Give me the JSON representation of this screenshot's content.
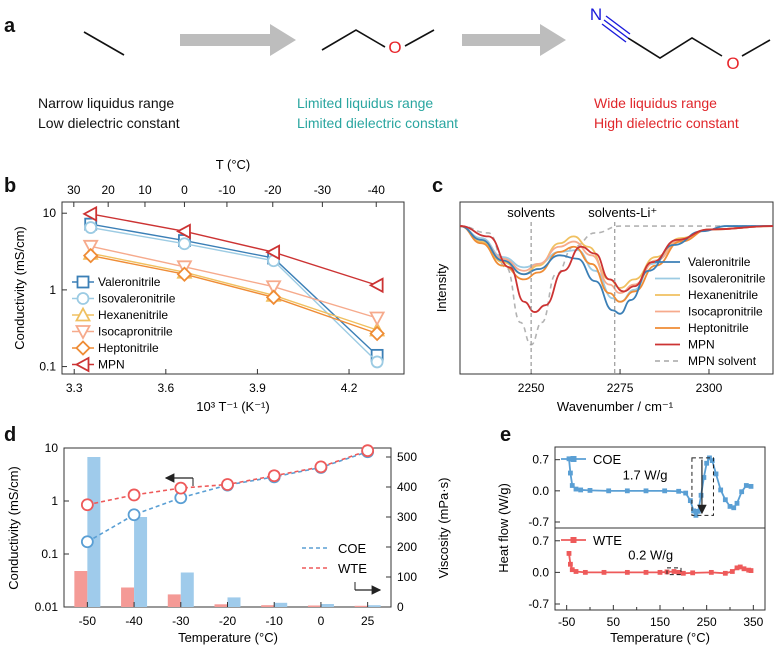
{
  "panel_labels": {
    "a": "a",
    "b": "b",
    "c": "c",
    "d": "d",
    "e": "e"
  },
  "colors": {
    "arrow_gray": "#b5b5b5",
    "oxygen_red": "#e8262b",
    "nitrogen_blue": "#1a1adb",
    "black_desc": "#111111",
    "teal_desc": "#2aa6a0",
    "red_desc": "#e0262b",
    "valeronitrile": "#3b7fb6",
    "isovaleronitrile": "#9ccbe3",
    "hexanenitrile": "#f0c060",
    "isocapronitrile": "#f6aa8c",
    "heptonitrile": "#ef8c35",
    "mpn": "#cc3333",
    "mpn_solvent": "#b3b3b3",
    "coe": "#5a9fd4",
    "wte": "#ee5a5a",
    "coe_bar": "#9fcbeb",
    "wte_bar": "#f49a96"
  },
  "panel_a": {
    "molecules": [
      {
        "name": "ethane-skeleton",
        "atoms": []
      },
      {
        "name": "ether-skeleton",
        "atoms": [
          "O"
        ]
      },
      {
        "name": "mpn-skeleton",
        "atoms": [
          "N",
          "O"
        ]
      }
    ],
    "descriptions": [
      {
        "line1": "Narrow liquidus range",
        "line2": "Low dielectric constant",
        "color": "#111111"
      },
      {
        "line1": "Limited liquidus range",
        "line2": "Limited dielectric constant",
        "color": "#2aa6a0"
      },
      {
        "line1": "Wide liquidus range",
        "line2": "High dielectric constant",
        "color": "#e0262b"
      }
    ]
  },
  "chart_data": [
    {
      "panel": "b",
      "type": "line",
      "xlabel": "10³ T⁻¹ (K⁻¹)",
      "ylabel": "Conductivity (mS/cm)",
      "top_xlabel": "T (°C)",
      "yscale": "log",
      "xlim": [
        3.26,
        4.38
      ],
      "ylim": [
        0.08,
        14
      ],
      "xticks": [
        "3.3",
        "3.6",
        "3.9",
        "4.2"
      ],
      "xtick_values": [
        3.3,
        3.6,
        3.9,
        4.2
      ],
      "yticks": [
        "0.1",
        "1",
        "10"
      ],
      "ytick_values": [
        0.1,
        1,
        10
      ],
      "top_ticks": [
        "30",
        "20",
        "10",
        "0",
        "-10",
        "-20",
        "-30",
        "-40"
      ],
      "top_tick_values": [
        30,
        20,
        10,
        0,
        -10,
        -20,
        -30,
        -40
      ],
      "x": [
        3.354,
        3.661,
        3.953,
        4.292
      ],
      "series": [
        {
          "name": "Valeronitrile",
          "values": [
            7.2,
            4.4,
            2.6,
            0.14
          ],
          "marker": "square",
          "color": "#3b7fb6"
        },
        {
          "name": "Isovaleronitrile",
          "values": [
            6.5,
            4.0,
            2.4,
            0.115
          ],
          "marker": "circle",
          "color": "#9ccbe3"
        },
        {
          "name": "Hexanenitrile",
          "values": [
            3.0,
            1.7,
            0.85,
            0.3
          ],
          "marker": "triangle-up",
          "color": "#f0c060"
        },
        {
          "name": "Isocapronitrile",
          "values": [
            3.7,
            2.0,
            1.1,
            0.43
          ],
          "marker": "triangle-down",
          "color": "#f6aa8c"
        },
        {
          "name": "Heptonitrile",
          "values": [
            2.8,
            1.6,
            0.8,
            0.27
          ],
          "marker": "diamond",
          "color": "#ef8c35"
        },
        {
          "name": "MPN",
          "values": [
            9.8,
            5.8,
            3.1,
            1.15
          ],
          "marker": "triangle-left",
          "color": "#cc3333"
        }
      ],
      "legend": "left"
    },
    {
      "panel": "c",
      "type": "line",
      "xlabel": "Wavenumber / cm⁻¹",
      "ylabel": "Intensity",
      "xlim": [
        2230,
        2318
      ],
      "ylim": [
        0,
        1
      ],
      "xticks": [
        "2250",
        "2275",
        "2300"
      ],
      "xtick_values": [
        2250,
        2275,
        2300
      ],
      "annotations": [
        "solvents",
        "solvents-Li⁺"
      ],
      "annotation_x": [
        2250,
        2273.5
      ],
      "series": [
        {
          "name": "Valeronitrile",
          "color": "#3b7fb6",
          "dash": false,
          "points": [
            [
              2230,
              0.86
            ],
            [
              2236,
              0.78
            ],
            [
              2242,
              0.66
            ],
            [
              2248,
              0.58
            ],
            [
              2252,
              0.61
            ],
            [
              2258,
              0.69
            ],
            [
              2263,
              0.67
            ],
            [
              2268,
              0.54
            ],
            [
              2273,
              0.37
            ],
            [
              2275,
              0.35
            ],
            [
              2278,
              0.43
            ],
            [
              2283,
              0.6
            ],
            [
              2290,
              0.75
            ],
            [
              2298,
              0.83
            ],
            [
              2305,
              0.86
            ],
            [
              2318,
              0.86
            ]
          ]
        },
        {
          "name": "Isovaleronitrile",
          "color": "#9ccbe3",
          "dash": false,
          "points": [
            [
              2230,
              0.86
            ],
            [
              2236,
              0.79
            ],
            [
              2242,
              0.68
            ],
            [
              2248,
              0.62
            ],
            [
              2252,
              0.64
            ],
            [
              2258,
              0.71
            ],
            [
              2263,
              0.72
            ],
            [
              2268,
              0.6
            ],
            [
              2273,
              0.44
            ],
            [
              2275,
              0.42
            ],
            [
              2279,
              0.49
            ],
            [
              2284,
              0.64
            ],
            [
              2291,
              0.77
            ],
            [
              2300,
              0.84
            ],
            [
              2318,
              0.86
            ]
          ]
        },
        {
          "name": "Hexanenitrile",
          "color": "#f0c060",
          "dash": false,
          "points": [
            [
              2230,
              0.86
            ],
            [
              2236,
              0.77
            ],
            [
              2242,
              0.65
            ],
            [
              2248,
              0.58
            ],
            [
              2252,
              0.63
            ],
            [
              2258,
              0.76
            ],
            [
              2262,
              0.8
            ],
            [
              2266,
              0.74
            ],
            [
              2272,
              0.55
            ],
            [
              2275,
              0.5
            ],
            [
              2279,
              0.55
            ],
            [
              2285,
              0.68
            ],
            [
              2292,
              0.79
            ],
            [
              2300,
              0.84
            ],
            [
              2318,
              0.86
            ]
          ]
        },
        {
          "name": "Isocapronitrile",
          "color": "#f6aa8c",
          "dash": false,
          "points": [
            [
              2230,
              0.86
            ],
            [
              2236,
              0.78
            ],
            [
              2242,
              0.67
            ],
            [
              2248,
              0.6
            ],
            [
              2252,
              0.64
            ],
            [
              2258,
              0.74
            ],
            [
              2262,
              0.77
            ],
            [
              2267,
              0.69
            ],
            [
              2272,
              0.52
            ],
            [
              2275,
              0.47
            ],
            [
              2279,
              0.52
            ],
            [
              2285,
              0.66
            ],
            [
              2292,
              0.78
            ],
            [
              2300,
              0.84
            ],
            [
              2318,
              0.86
            ]
          ]
        },
        {
          "name": "Heptonitrile",
          "color": "#ef8c35",
          "dash": false,
          "points": [
            [
              2230,
              0.86
            ],
            [
              2236,
              0.76
            ],
            [
              2242,
              0.63
            ],
            [
              2248,
              0.55
            ],
            [
              2252,
              0.59
            ],
            [
              2258,
              0.71
            ],
            [
              2262,
              0.74
            ],
            [
              2267,
              0.64
            ],
            [
              2272,
              0.47
            ],
            [
              2275,
              0.42
            ],
            [
              2279,
              0.48
            ],
            [
              2285,
              0.63
            ],
            [
              2292,
              0.77
            ],
            [
              2300,
              0.84
            ],
            [
              2318,
              0.86
            ]
          ]
        },
        {
          "name": "MPN",
          "color": "#cc3333",
          "dash": false,
          "points": [
            [
              2230,
              0.86
            ],
            [
              2238,
              0.8
            ],
            [
              2244,
              0.62
            ],
            [
              2248,
              0.42
            ],
            [
              2251,
              0.36
            ],
            [
              2254,
              0.4
            ],
            [
              2259,
              0.6
            ],
            [
              2264,
              0.74
            ],
            [
              2268,
              0.7
            ],
            [
              2272,
              0.55
            ],
            [
              2276,
              0.48
            ],
            [
              2279,
              0.51
            ],
            [
              2284,
              0.65
            ],
            [
              2291,
              0.78
            ],
            [
              2300,
              0.84
            ],
            [
              2318,
              0.86
            ]
          ]
        },
        {
          "name": "MPN solvent",
          "color": "#b3b3b3",
          "dash": true,
          "points": [
            [
              2230,
              0.86
            ],
            [
              2238,
              0.82
            ],
            [
              2243,
              0.62
            ],
            [
              2247,
              0.3
            ],
            [
              2250,
              0.17
            ],
            [
              2253,
              0.3
            ],
            [
              2257,
              0.58
            ],
            [
              2262,
              0.74
            ],
            [
              2268,
              0.82
            ],
            [
              2275,
              0.86
            ],
            [
              2290,
              0.86
            ],
            [
              2318,
              0.86
            ]
          ]
        }
      ],
      "legend": "right"
    },
    {
      "panel": "d",
      "type": "bar+line",
      "xlabel": "Temperature (°C)",
      "ylabel": "Conductivity (mS/cm)",
      "y2label": "Viscosity (mPa·s)",
      "categories": [
        "-50",
        "-40",
        "-30",
        "-20",
        "-10",
        "0",
        "25"
      ],
      "yscale": "log",
      "ylim": [
        0.01,
        10
      ],
      "yticks": [
        "0.01",
        "0.1",
        "1",
        "10"
      ],
      "ytick_values": [
        0.01,
        0.1,
        1,
        10
      ],
      "y2lim": [
        0,
        530
      ],
      "y2ticks": [
        "0",
        "100",
        "200",
        "300",
        "400",
        "500"
      ],
      "y2tick_values": [
        0,
        100,
        200,
        300,
        400,
        500
      ],
      "bars": [
        {
          "name": "WTE viscosity",
          "values": [
            120,
            65,
            42,
            9,
            6,
            5,
            4
          ],
          "color": "#f49a96"
        },
        {
          "name": "COE viscosity",
          "values": [
            500,
            300,
            115,
            32,
            14,
            10,
            6
          ],
          "color": "#9fcbeb"
        }
      ],
      "series": [
        {
          "name": "COE",
          "values": [
            0.17,
            0.55,
            1.15,
            2.0,
            2.85,
            4.3,
            8.5
          ],
          "color": "#5a9fd4",
          "marker": "open-circle"
        },
        {
          "name": "WTE",
          "values": [
            0.85,
            1.3,
            1.75,
            2.05,
            3.0,
            4.4,
            8.9
          ],
          "color": "#ee5a5a",
          "marker": "open-circle"
        }
      ],
      "legend": "right"
    },
    {
      "panel": "e",
      "type": "line",
      "xlabel": "Temperature (°C)",
      "ylabel": "Heat flow (W/g)",
      "xlim": [
        -75,
        375
      ],
      "xticks": [
        "-50",
        "0",
        "50",
        "100",
        "150",
        "200",
        "250",
        "300",
        "350"
      ],
      "xtick_values": [
        -50,
        0,
        50,
        100,
        150,
        200,
        250,
        300,
        350
      ],
      "ylim": [
        -0.7,
        0.85
      ],
      "yticks": [
        "-0.7",
        "0.0",
        "0.7"
      ],
      "ytick_values": [
        -0.7,
        0.0,
        0.7
      ],
      "subplots": [
        {
          "name": "COE",
          "color": "#5a9fd4",
          "annotation": "1.7 W/g",
          "points": [
            [
              -45,
              0.72
            ],
            [
              -42,
              0.4
            ],
            [
              -38,
              0.12
            ],
            [
              -30,
              0.04
            ],
            [
              -20,
              0.02
            ],
            [
              0,
              0.01
            ],
            [
              40,
              0.0
            ],
            [
              80,
              0.0
            ],
            [
              120,
              0.0
            ],
            [
              160,
              0.0
            ],
            [
              190,
              -0.01
            ],
            [
              205,
              -0.05
            ],
            [
              215,
              -0.22
            ],
            [
              222,
              -0.45
            ],
            [
              227,
              -0.55
            ],
            [
              232,
              -0.46
            ],
            [
              238,
              -0.1
            ],
            [
              244,
              0.3
            ],
            [
              250,
              0.62
            ],
            [
              256,
              0.74
            ],
            [
              262,
              0.68
            ],
            [
              270,
              0.38
            ],
            [
              280,
              0.02
            ],
            [
              290,
              -0.2
            ],
            [
              300,
              -0.35
            ],
            [
              308,
              -0.38
            ],
            [
              315,
              -0.28
            ],
            [
              325,
              -0.02
            ],
            [
              335,
              0.12
            ],
            [
              345,
              0.1
            ]
          ]
        },
        {
          "name": "WTE",
          "color": "#ee5a5a",
          "annotation": "0.2 W/g",
          "points": [
            [
              -45,
              0.42
            ],
            [
              -42,
              0.18
            ],
            [
              -38,
              0.06
            ],
            [
              -30,
              0.02
            ],
            [
              -10,
              0.0
            ],
            [
              30,
              0.0
            ],
            [
              80,
              0.0
            ],
            [
              120,
              0.0
            ],
            [
              150,
              0.0
            ],
            [
              165,
              0.01
            ],
            [
              180,
              0.02
            ],
            [
              190,
              0.0
            ],
            [
              200,
              -0.02
            ],
            [
              220,
              -0.01
            ],
            [
              260,
              0.0
            ],
            [
              290,
              -0.02
            ],
            [
              305,
              0.02
            ],
            [
              315,
              0.1
            ],
            [
              322,
              0.12
            ],
            [
              330,
              0.08
            ],
            [
              340,
              0.05
            ],
            [
              345,
              0.04
            ]
          ]
        }
      ]
    }
  ]
}
